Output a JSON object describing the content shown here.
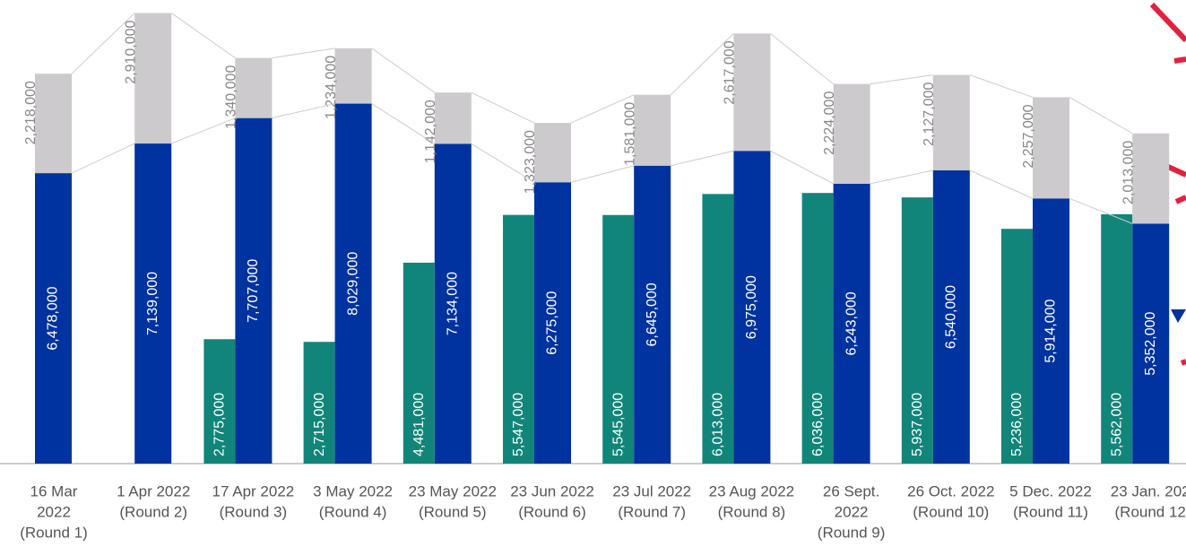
{
  "chart_data": {
    "type": "bar",
    "categories": [
      [
        "16 Mar",
        "2022",
        "(Round 1)"
      ],
      [
        "1 Apr 2022",
        "(Round 2)"
      ],
      [
        "17 Apr 2022",
        "(Round 3)"
      ],
      [
        "3 May 2022",
        "(Round 4)"
      ],
      [
        "23 May 2022",
        "(Round 5)"
      ],
      [
        "23 Jun 2022",
        "(Round 6)"
      ],
      [
        "23 Jul 2022",
        "(Round 7)"
      ],
      [
        "23 Aug 2022",
        "(Round 8)"
      ],
      [
        "26 Sept.",
        "2022",
        "(Round 9)"
      ],
      [
        "26 Oct. 2022",
        "(Round 10)"
      ],
      [
        "5 Dec. 2022",
        "(Round 11)"
      ],
      [
        "23 Jan. 202",
        "(Round 12"
      ]
    ],
    "series": [
      {
        "color": "#12857a",
        "values": [
          null,
          null,
          2775000,
          2715000,
          4481000,
          5547000,
          5545000,
          6013000,
          6036000,
          5937000,
          5236000,
          5562000
        ],
        "value_labels": [
          null,
          null,
          "2,775,000",
          "2,715,000",
          "4,481,000",
          "5,547,000",
          "5,545,000",
          "6,013,000",
          "6,036,000",
          "5,937,000",
          "5,236,000",
          "5,562,000"
        ]
      },
      {
        "color": "#0033a0",
        "values": [
          6478000,
          7139000,
          7707000,
          8029000,
          7134000,
          6275000,
          6645000,
          6975000,
          6243000,
          6540000,
          5914000,
          5352000
        ],
        "value_labels": [
          "6,478,000",
          "7,139,000",
          "7,707,000",
          "8,029,000",
          "7,134,000",
          "6,275,000",
          "6,645,000",
          "6,975,000",
          "6,243,000",
          "6,540,000",
          "5,914,000",
          "5,352,000"
        ]
      },
      {
        "color": "#cccacc",
        "values": [
          2218000,
          2910000,
          1340000,
          1234000,
          1142000,
          1323000,
          1581000,
          2617000,
          2224000,
          2127000,
          2257000,
          2013000
        ],
        "value_labels": [
          "2,218,000",
          "2,910,000",
          "1,340,000",
          "1,234,000",
          "1,142,000",
          "1,323,000",
          "1,581,000",
          "2,617,000",
          "2,224,000",
          "2,127,000",
          "2,257,000",
          "2,013,000"
        ]
      }
    ],
    "ylim": [
      0,
      10340000
    ]
  }
}
